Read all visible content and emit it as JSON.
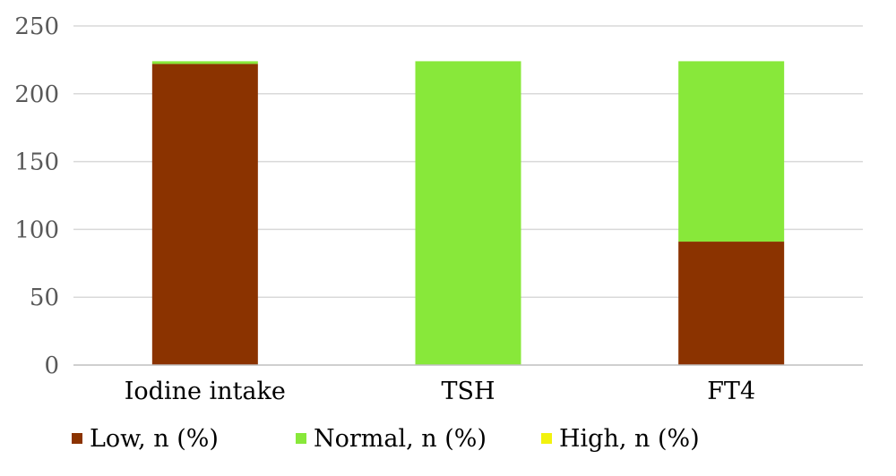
{
  "chart_data": {
    "type": "bar",
    "stacked": true,
    "categories": [
      "Iodine intake",
      "TSH",
      "FT4"
    ],
    "series": [
      {
        "name": "Low, n (%)",
        "values": [
          222,
          0,
          91
        ],
        "color": "#8B3300"
      },
      {
        "name": "Normal, n (%)",
        "values": [
          2,
          224,
          133
        ],
        "color": "#88E83A"
      },
      {
        "name": "High, n (%)",
        "values": [
          0,
          0,
          0
        ],
        "color": "#F2F20E"
      }
    ],
    "yticks": [
      "0",
      "50",
      "100",
      "150",
      "200",
      "250"
    ],
    "ylim": [
      0,
      250
    ],
    "grid": true,
    "legend_position": "bottom"
  }
}
